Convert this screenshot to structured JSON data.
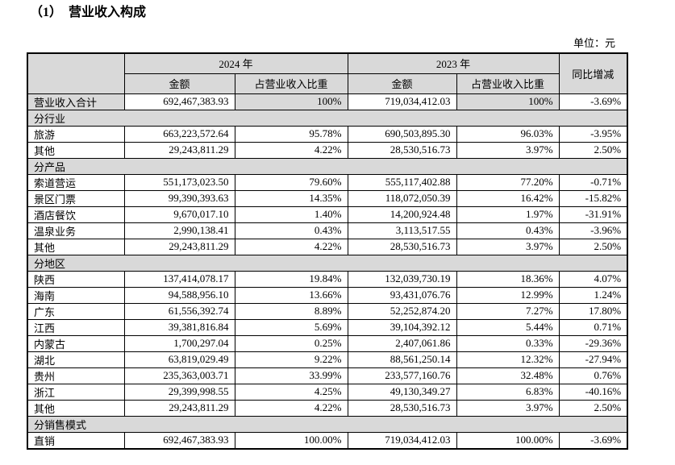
{
  "title": "（1）  营业收入构成",
  "unit_label": "单位：元",
  "table": {
    "header": {
      "corner": "",
      "year_2024": "2024 年",
      "year_2023": "2023 年",
      "amount_2024": "金额",
      "proportion_2024": "占营业收入比重",
      "amount_2023": "金额",
      "proportion_2023": "占营业收入比重",
      "yoy": "同比增减"
    },
    "rows": [
      {
        "type": "data",
        "highlight": true,
        "label": "营业收入合计",
        "a2024": "692,467,383.93",
        "p2024": "100%",
        "a2023": "719,034,412.03",
        "p2023": "100%",
        "yoy": "-3.69%"
      },
      {
        "type": "section",
        "label": "分行业"
      },
      {
        "type": "data",
        "label": "旅游",
        "a2024": "663,223,572.64",
        "p2024": "95.78%",
        "a2023": "690,503,895.30",
        "p2023": "96.03%",
        "yoy": "-3.95%"
      },
      {
        "type": "data",
        "label": "其他",
        "a2024": "29,243,811.29",
        "p2024": "4.22%",
        "a2023": "28,530,516.73",
        "p2023": "3.97%",
        "yoy": "2.50%"
      },
      {
        "type": "section",
        "label": "分产品"
      },
      {
        "type": "data",
        "label": "索道营运",
        "a2024": "551,173,023.50",
        "p2024": "79.60%",
        "a2023": "555,117,402.88",
        "p2023": "77.20%",
        "yoy": "-0.71%"
      },
      {
        "type": "data",
        "label": "景区门票",
        "a2024": "99,390,393.63",
        "p2024": "14.35%",
        "a2023": "118,072,050.39",
        "p2023": "16.42%",
        "yoy": "-15.82%"
      },
      {
        "type": "data",
        "label": "酒店餐饮",
        "a2024": "9,670,017.10",
        "p2024": "1.40%",
        "a2023": "14,200,924.48",
        "p2023": "1.97%",
        "yoy": "-31.91%"
      },
      {
        "type": "data",
        "label": "温泉业务",
        "a2024": "2,990,138.41",
        "p2024": "0.43%",
        "a2023": "3,113,517.55",
        "p2023": "0.43%",
        "yoy": "-3.96%"
      },
      {
        "type": "data",
        "label": "其他",
        "a2024": "29,243,811.29",
        "p2024": "4.22%",
        "a2023": "28,530,516.73",
        "p2023": "3.97%",
        "yoy": "2.50%"
      },
      {
        "type": "section",
        "label": "分地区"
      },
      {
        "type": "data",
        "label": "陕西",
        "a2024": "137,414,078.17",
        "p2024": "19.84%",
        "a2023": "132,039,730.19",
        "p2023": "18.36%",
        "yoy": "4.07%"
      },
      {
        "type": "data",
        "label": "海南",
        "a2024": "94,588,956.10",
        "p2024": "13.66%",
        "a2023": "93,431,076.76",
        "p2023": "12.99%",
        "yoy": "1.24%"
      },
      {
        "type": "data",
        "label": "广东",
        "a2024": "61,556,392.74",
        "p2024": "8.89%",
        "a2023": "52,252,874.20",
        "p2023": "7.27%",
        "yoy": "17.80%"
      },
      {
        "type": "data",
        "label": "江西",
        "a2024": "39,381,816.84",
        "p2024": "5.69%",
        "a2023": "39,104,392.12",
        "p2023": "5.44%",
        "yoy": "0.71%"
      },
      {
        "type": "data",
        "label": "内蒙古",
        "a2024": "1,700,297.04",
        "p2024": "0.25%",
        "a2023": "2,407,061.86",
        "p2023": "0.33%",
        "yoy": "-29.36%"
      },
      {
        "type": "data",
        "label": "湖北",
        "a2024": "63,819,029.49",
        "p2024": "9.22%",
        "a2023": "88,561,250.14",
        "p2023": "12.32%",
        "yoy": "-27.94%"
      },
      {
        "type": "data",
        "label": "贵州",
        "a2024": "235,363,003.71",
        "p2024": "33.99%",
        "a2023": "233,577,160.76",
        "p2023": "32.48%",
        "yoy": "0.76%"
      },
      {
        "type": "data",
        "label": "浙江",
        "a2024": "29,399,998.55",
        "p2024": "4.25%",
        "a2023": "49,130,349.27",
        "p2023": "6.83%",
        "yoy": "-40.16%"
      },
      {
        "type": "data",
        "label": "其他",
        "a2024": "29,243,811.29",
        "p2024": "4.22%",
        "a2023": "28,530,516.73",
        "p2023": "3.97%",
        "yoy": "2.50%"
      },
      {
        "type": "section",
        "label": "分销售模式"
      },
      {
        "type": "data",
        "label": "直销",
        "a2024": "692,467,383.93",
        "p2024": "100.00%",
        "a2023": "719,034,412.03",
        "p2023": "100.00%",
        "yoy": "-3.69%"
      }
    ]
  }
}
